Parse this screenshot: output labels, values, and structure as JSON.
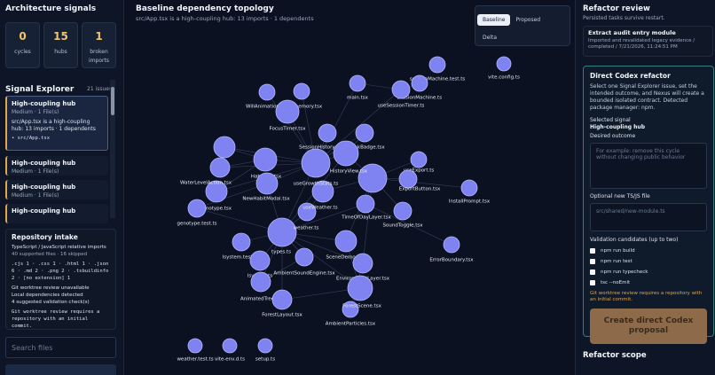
{
  "left": {
    "signals_title": "Architecture signals",
    "stats": [
      {
        "value": "0",
        "label": "cycles"
      },
      {
        "value": "15",
        "label": "hubs"
      },
      {
        "value": "1",
        "label": "broken imports"
      }
    ],
    "explorer_title": "Signal Explorer",
    "explorer_count": "21 issues",
    "issues": [
      {
        "title": "High-coupling hub",
        "meta": "Medium · 1 File(s)",
        "desc": "src/App.tsx is a high-coupling hub: 13 imports · 1 dependents",
        "file": "• src/App.tsx"
      },
      {
        "title": "High-coupling hub",
        "meta": "Medium · 1 File(s)"
      },
      {
        "title": "High-coupling hub",
        "meta": "Medium · 1 File(s)"
      },
      {
        "title": "High-coupling hub"
      }
    ],
    "intake": {
      "title": "Repository intake",
      "lines": [
        "TypeScript / JavaScript relative imports",
        "40 supported files · 16 skipped"
      ],
      "extensions": ".cjs 1 · .css 1 · .html 1 · .json 6 · .md 2 · .png 2 · .tsbuildinfo 2 · [no extension] 1",
      "status": [
        "Git worktree review unavailable",
        "Local dependencies detected",
        "4 suggested validation check(s)"
      ],
      "note": "Git worktree review requires a repository with an initial commit."
    },
    "search_placeholder": "Search files"
  },
  "graph": {
    "title": "Baseline dependency topology",
    "subtitle": "src/App.tsx is a high-coupling hub: 13 imports · 1 dependents",
    "tabs": [
      "Baseline",
      "Proposed",
      "Delta"
    ],
    "nodes": [
      "vite.config.ts",
      "sessionMachine.test.ts",
      "main.tsx",
      "sessionMachine.ts",
      "useSessionTimer.ts",
      "WillAnimation.tsx",
      "memory.tsx",
      "FocusTimer.tsx",
      "SessionHistory.tsx",
      "StreakBadge.tsx",
      "HistoryView.tsx",
      "useGrowthStats.ts",
      "useExport.ts",
      "ExportButton.tsx",
      "HabitList.tsx",
      "WaterLevelAction.tsx",
      "NewHabitModal.tsx",
      "useWeather.ts",
      "TimeOfDayLayer.tsx",
      "SoundToggle.tsx",
      "InstallPrompt.tsx",
      "genotype.tsx",
      "genotype.test.ts",
      "weather.ts",
      "types.ts",
      "lsystem.test.ts",
      "lsystem.ts",
      "SceneDemo.tsx",
      "EnvironmentLayer.tsx",
      "AmbientSoundEngine.tsx",
      "ErrorBoundary.tsx",
      "AnimatedTree.tsx",
      "ForestLayout.tsx",
      "ForestScene.tsx",
      "AmbientParticles.tsx",
      "weather.test.ts",
      "vite-env.d.ts",
      "setup.ts"
    ]
  },
  "right": {
    "title": "Refactor review",
    "subtitle": "Persisted tasks survive restart.",
    "task": {
      "title": "Extract audit entry module",
      "detail": "Imported and revalidated legacy evidence / completed / 7/21/2026, 11:24:51 PM"
    },
    "codex": {
      "title": "Direct Codex refactor",
      "desc": "Select one Signal Explorer issue, set the intended outcome, and Nexus will create a bounded isolated contract. Detected package manager: npm.",
      "selected_label": "Selected signal",
      "selected_value": "High-coupling hub",
      "outcome_label": "Desired outcome",
      "outcome_placeholder": "For example: remove this cycle without changing public behavior",
      "file_label": "Optional new TS/JS file",
      "file_placeholder": "src/shared/new-module.ts",
      "validation_label": "Validation candidates (up to two)",
      "checks": [
        "npm run build",
        "npm run test",
        "npm run typecheck",
        "tsc --noEmit"
      ],
      "warning": "Git worktree review requires a repository with an initial commit.",
      "button": "Create direct Codex proposal"
    },
    "scope_title": "Refactor scope"
  }
}
